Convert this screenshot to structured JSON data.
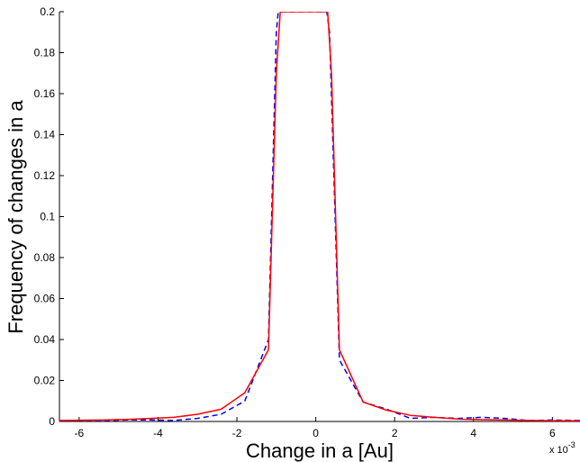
{
  "chart_data": {
    "type": "line",
    "title": "",
    "xlabel": "Change in a [Au]",
    "ylabel": "Frequency of changes in a",
    "x_exponent_label": "x 10",
    "x_exponent_power": "-3",
    "xlim": [
      -6.5,
      6.7
    ],
    "ylim": [
      0,
      0.2
    ],
    "xticks": [
      -6,
      -4,
      -2,
      0,
      2,
      4,
      6
    ],
    "yticks": [
      0,
      0.02,
      0.04,
      0.06,
      0.08,
      0.1,
      0.12,
      0.14,
      0.16,
      0.18,
      0.2
    ],
    "xtick_labels": [
      "-6",
      "-4",
      "-2",
      "0",
      "2",
      "4",
      "6"
    ],
    "ytick_labels": [
      "0",
      "0.02",
      "0.04",
      "0.06",
      "0.08",
      "0.1",
      "0.12",
      "0.14",
      "0.16",
      "0.18",
      "0.2"
    ],
    "grid": false,
    "series": [
      {
        "color": "#ff0000",
        "style": "solid",
        "x": [
          -6.5,
          -6.0,
          -5.4,
          -4.8,
          -4.2,
          -3.6,
          -3.0,
          -2.4,
          -1.8,
          -1.2,
          -1.0,
          -0.9,
          0.3,
          0.4,
          0.6,
          1.2,
          1.8,
          2.4,
          3.0,
          3.6,
          4.2,
          4.8,
          5.4,
          6.0,
          6.7
        ],
        "y": [
          0.0005,
          0.0006,
          0.0007,
          0.001,
          0.0015,
          0.002,
          0.0035,
          0.006,
          0.014,
          0.035,
          0.17,
          0.2,
          0.2,
          0.17,
          0.035,
          0.0095,
          0.0055,
          0.003,
          0.002,
          0.0012,
          0.0009,
          0.0007,
          0.0005,
          0.0004,
          0.0003
        ]
      },
      {
        "color": "#0000ff",
        "style": "dashed",
        "x": [
          -6.5,
          -6.0,
          -5.4,
          -4.8,
          -4.2,
          -3.6,
          -3.0,
          -2.4,
          -1.8,
          -1.2,
          -1.0,
          -0.95,
          0.28,
          0.35,
          0.6,
          1.2,
          1.8,
          2.4,
          3.0,
          3.6,
          4.2,
          4.8,
          5.4,
          6.0,
          6.7
        ],
        "y": [
          0.0003,
          0.0005,
          0.0003,
          0.0008,
          0.0008,
          0.0005,
          0.0015,
          0.0035,
          0.01,
          0.04,
          0.19,
          0.2,
          0.2,
          0.19,
          0.03,
          0.0095,
          0.006,
          0.0015,
          0.002,
          0.0015,
          0.002,
          0.0015,
          0.0005,
          0.0007,
          0.0005
        ]
      }
    ]
  }
}
